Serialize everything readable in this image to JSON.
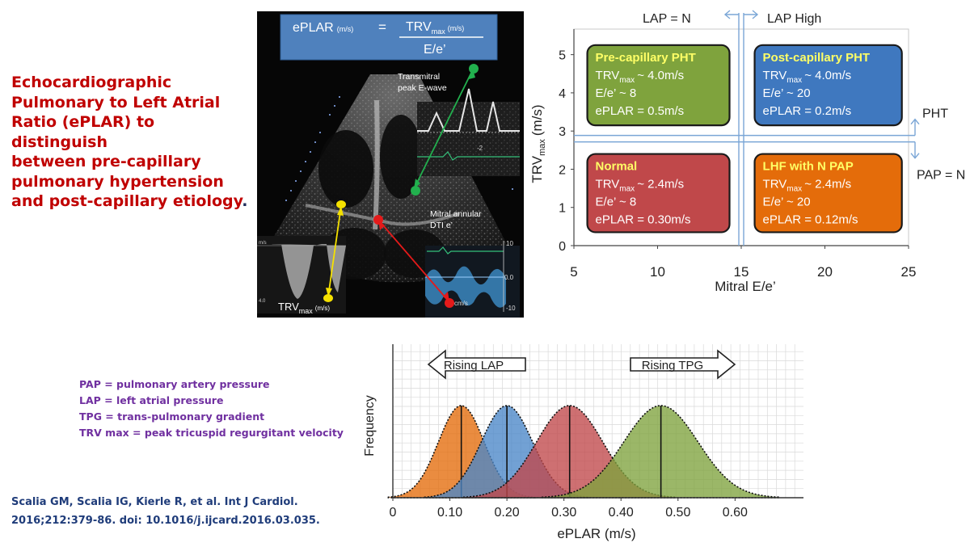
{
  "title": {
    "lines": [
      "Echocardiographic",
      "Pulmonary to Left Atrial",
      "Ratio (ePLAR) to distinguish",
      "between pre-capillary",
      "pulmonary hypertension",
      "and post-capillary etiology"
    ],
    "period": "."
  },
  "formula": {
    "lhs": "ePLAR",
    "lhs_unit": "(m/s)",
    "equals": "=",
    "num_main": "TRV",
    "num_sub": "max",
    "num_unit": "(m/s)",
    "denominator": "E/e’"
  },
  "echo": {
    "e_wave_label": [
      "Transmitral",
      "peak E-wave"
    ],
    "dti_label": [
      "Mitral annular",
      "DTI  e’"
    ],
    "trv_label_main": "TRV",
    "trv_label_sub": "max",
    "trv_label_unit": "(m/s)",
    "dti_ticks": [
      "10",
      "0.0",
      "-10"
    ],
    "dti_unit": "cm/s",
    "e_wave_tick": "-2",
    "cw_scale_top": "m/s",
    "cw_scale_bottom": "4.0"
  },
  "quadrant_chart": {
    "xlabel": "Mitral E/e’",
    "ylabel_main": "TRV",
    "ylabel_sub": "max",
    "ylabel_unit": "(m/s)",
    "x_ticks": [
      "5",
      "10",
      "15",
      "20",
      "25"
    ],
    "y_ticks": [
      "0",
      "1",
      "2",
      "3",
      "4",
      "5"
    ],
    "x_range": [
      5,
      25
    ],
    "y_range": [
      0,
      5.5
    ],
    "x_split": 15,
    "y_split": 2.8,
    "lap_normal": "LAP = N",
    "lap_high": "LAP High",
    "pht": "PHT",
    "pap_normal": "PAP = N",
    "boxes": [
      {
        "key": "pre",
        "title": "Pre-capillary PHT",
        "trv": "~ 4.0m/s",
        "ee": "E/e’ ~ 8",
        "eplar": "ePLAR = 0.5m/s",
        "color": "#7fa33d"
      },
      {
        "key": "post",
        "title": "Post-capillary PHT",
        "trv": "~ 4.0m/s",
        "ee": "E/e’ ~ 20",
        "eplar": "ePLAR = 0.2m/s",
        "color": "#3f78bf"
      },
      {
        "key": "normal",
        "title": "Normal",
        "trv": "~ 2.4m/s",
        "ee": "E/e’ ~ 8",
        "eplar": "ePLAR = 0.30m/s",
        "color": "#c0484a"
      },
      {
        "key": "lhf",
        "title": "LHF with N PAP",
        "trv": "~ 2.4m/s",
        "ee": "E/e’ ~ 20",
        "eplar": "ePLAR = 0.12m/s",
        "color": "#e46c0a"
      }
    ]
  },
  "distribution_chart": {
    "type": "area",
    "xlabel": "ePLAR (m/s)",
    "ylabel": "Frequency",
    "x_ticks": [
      "0",
      "0.10",
      "0.20",
      "0.30",
      "0.40",
      "0.50",
      "0.60"
    ],
    "x_range": [
      0,
      0.72
    ],
    "rising_lap": "Rising LAP",
    "rising_tpg": "Rising TPG",
    "series": [
      {
        "name": "LHF with N PAP",
        "mean": 0.12,
        "color": "#e46c0a"
      },
      {
        "name": "Post-capillary PHT",
        "mean": 0.2,
        "color": "#4a86c8"
      },
      {
        "name": "Normal",
        "mean": 0.31,
        "color": "#c0484a"
      },
      {
        "name": "Pre-capillary PHT",
        "mean": 0.47,
        "color": "#7fa33d"
      }
    ]
  },
  "definitions": [
    "PAP = pulmonary artery pressure",
    "LAP = left atrial pressure",
    "TPG = trans-pulmonary gradient",
    "TRV max = peak tricuspid regurgitant velocity"
  ],
  "citation": [
    "Scalia GM, Scalia IG, Kierle R, et al. Int J Cardiol.",
    "2016;212:379-86. doi: 10.1016/j.ijcard.2016.03.035."
  ]
}
